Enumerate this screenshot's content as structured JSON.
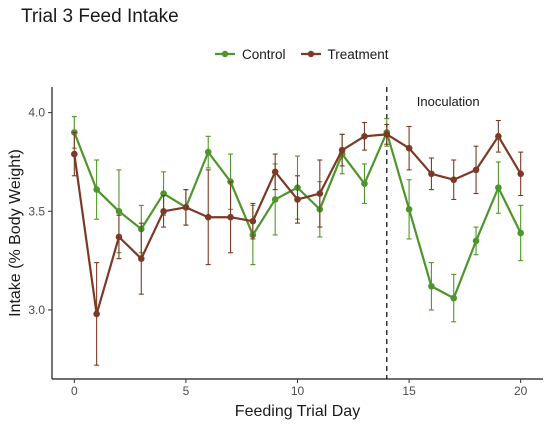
{
  "chart_data": {
    "type": "line",
    "title": "Trial 3 Feed Intake",
    "xlabel": "Feeding Trial Day",
    "ylabel": "Intake (% Body Weight)",
    "xlim": [
      -1,
      21
    ],
    "ylim": [
      2.65,
      4.13
    ],
    "x_ticks": [
      0,
      5,
      10,
      15,
      20
    ],
    "x_tick_labels": [
      "0",
      "5",
      "10",
      "15",
      "20"
    ],
    "y_ticks": [
      3.0,
      3.5,
      4.0
    ],
    "y_tick_labels": [
      "3.0",
      "3.5",
      "4.0"
    ],
    "grid": false,
    "legend_position": "top",
    "x": [
      0,
      1,
      2,
      3,
      4,
      5,
      6,
      7,
      8,
      9,
      10,
      11,
      12,
      13,
      14,
      15,
      16,
      17,
      18,
      19,
      20
    ],
    "series": [
      {
        "name": "Control",
        "color": "#4e962b",
        "values": [
          3.9,
          3.61,
          3.5,
          3.41,
          3.59,
          3.52,
          3.8,
          3.65,
          3.38,
          3.56,
          3.62,
          3.51,
          3.79,
          3.64,
          3.9,
          3.51,
          3.12,
          3.06,
          3.35,
          3.62,
          3.39
        ],
        "error": [
          0.08,
          0.15,
          0.21,
          0.12,
          0.11,
          0.09,
          0.08,
          0.14,
          0.15,
          0.18,
          0.16,
          0.14,
          0.1,
          0.1,
          0.07,
          0.15,
          0.12,
          0.12,
          0.07,
          0.13,
          0.14
        ]
      },
      {
        "name": "Treatment",
        "color": "#7b3a25",
        "values": [
          3.79,
          2.98,
          3.37,
          3.26,
          3.5,
          3.52,
          3.47,
          3.47,
          3.45,
          3.7,
          3.56,
          3.59,
          3.81,
          3.88,
          3.89,
          3.82,
          3.69,
          3.66,
          3.71,
          3.88,
          3.69
        ],
        "error": [
          0.11,
          0.26,
          0.11,
          0.18,
          0.08,
          0.09,
          0.24,
          0.18,
          0.09,
          0.09,
          0.12,
          0.17,
          0.08,
          0.07,
          0.05,
          0.11,
          0.08,
          0.1,
          0.12,
          0.08,
          0.11
        ]
      }
    ],
    "annotations": [
      {
        "type": "vline",
        "x": 14,
        "linestyle": "dashed",
        "label": "Inoculation"
      }
    ]
  }
}
